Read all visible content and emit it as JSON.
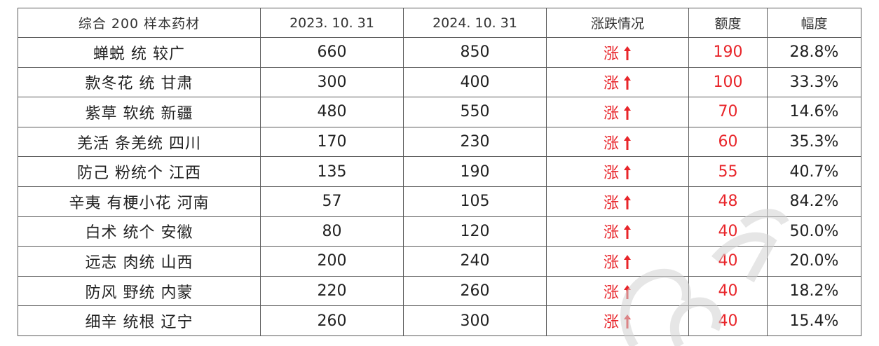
{
  "table": {
    "headers": [
      "综合 200 样本药材",
      "2023. 10. 31",
      "2024. 10. 31",
      "涨跌情况",
      "额度",
      "幅度"
    ],
    "rows": [
      {
        "name": "蝉蜕 统 较广",
        "price_2023": "660",
        "price_2024": "850",
        "trend": "涨",
        "amount": "190",
        "percent": "28.8%"
      },
      {
        "name": "款冬花 统 甘肃",
        "price_2023": "300",
        "price_2024": "400",
        "trend": "涨",
        "amount": "100",
        "percent": "33.3%"
      },
      {
        "name": "紫草 软统 新疆",
        "price_2023": "480",
        "price_2024": "550",
        "trend": "涨",
        "amount": "70",
        "percent": "14.6%"
      },
      {
        "name": "羌活 条羌统 四川",
        "price_2023": "170",
        "price_2024": "230",
        "trend": "涨",
        "amount": "60",
        "percent": "35.3%"
      },
      {
        "name": "防己 粉统个 江西",
        "price_2023": "135",
        "price_2024": "190",
        "trend": "涨",
        "amount": "55",
        "percent": "40.7%"
      },
      {
        "name": "辛夷 有梗小花 河南",
        "price_2023": "57",
        "price_2024": "105",
        "trend": "涨",
        "amount": "48",
        "percent": "84.2%"
      },
      {
        "name": "白术 统个 安徽",
        "price_2023": "80",
        "price_2024": "120",
        "trend": "涨",
        "amount": "40",
        "percent": "50.0%"
      },
      {
        "name": "远志 肉统 山西",
        "price_2023": "200",
        "price_2024": "240",
        "trend": "涨",
        "amount": "40",
        "percent": "20.0%"
      },
      {
        "name": "防风 野统 内蒙",
        "price_2023": "220",
        "price_2024": "260",
        "trend": "涨",
        "amount": "40",
        "percent": "18.2%"
      },
      {
        "name": "细辛 统根 辽宁",
        "price_2023": "260",
        "price_2024": "300",
        "trend": "涨",
        "amount": "40",
        "percent": "15.4%"
      }
    ]
  },
  "colors": {
    "up": "#e8252a",
    "border": "#5a5a5a",
    "text": "#222222"
  },
  "icons": {
    "trend_up": "up-arrow-icon"
  }
}
